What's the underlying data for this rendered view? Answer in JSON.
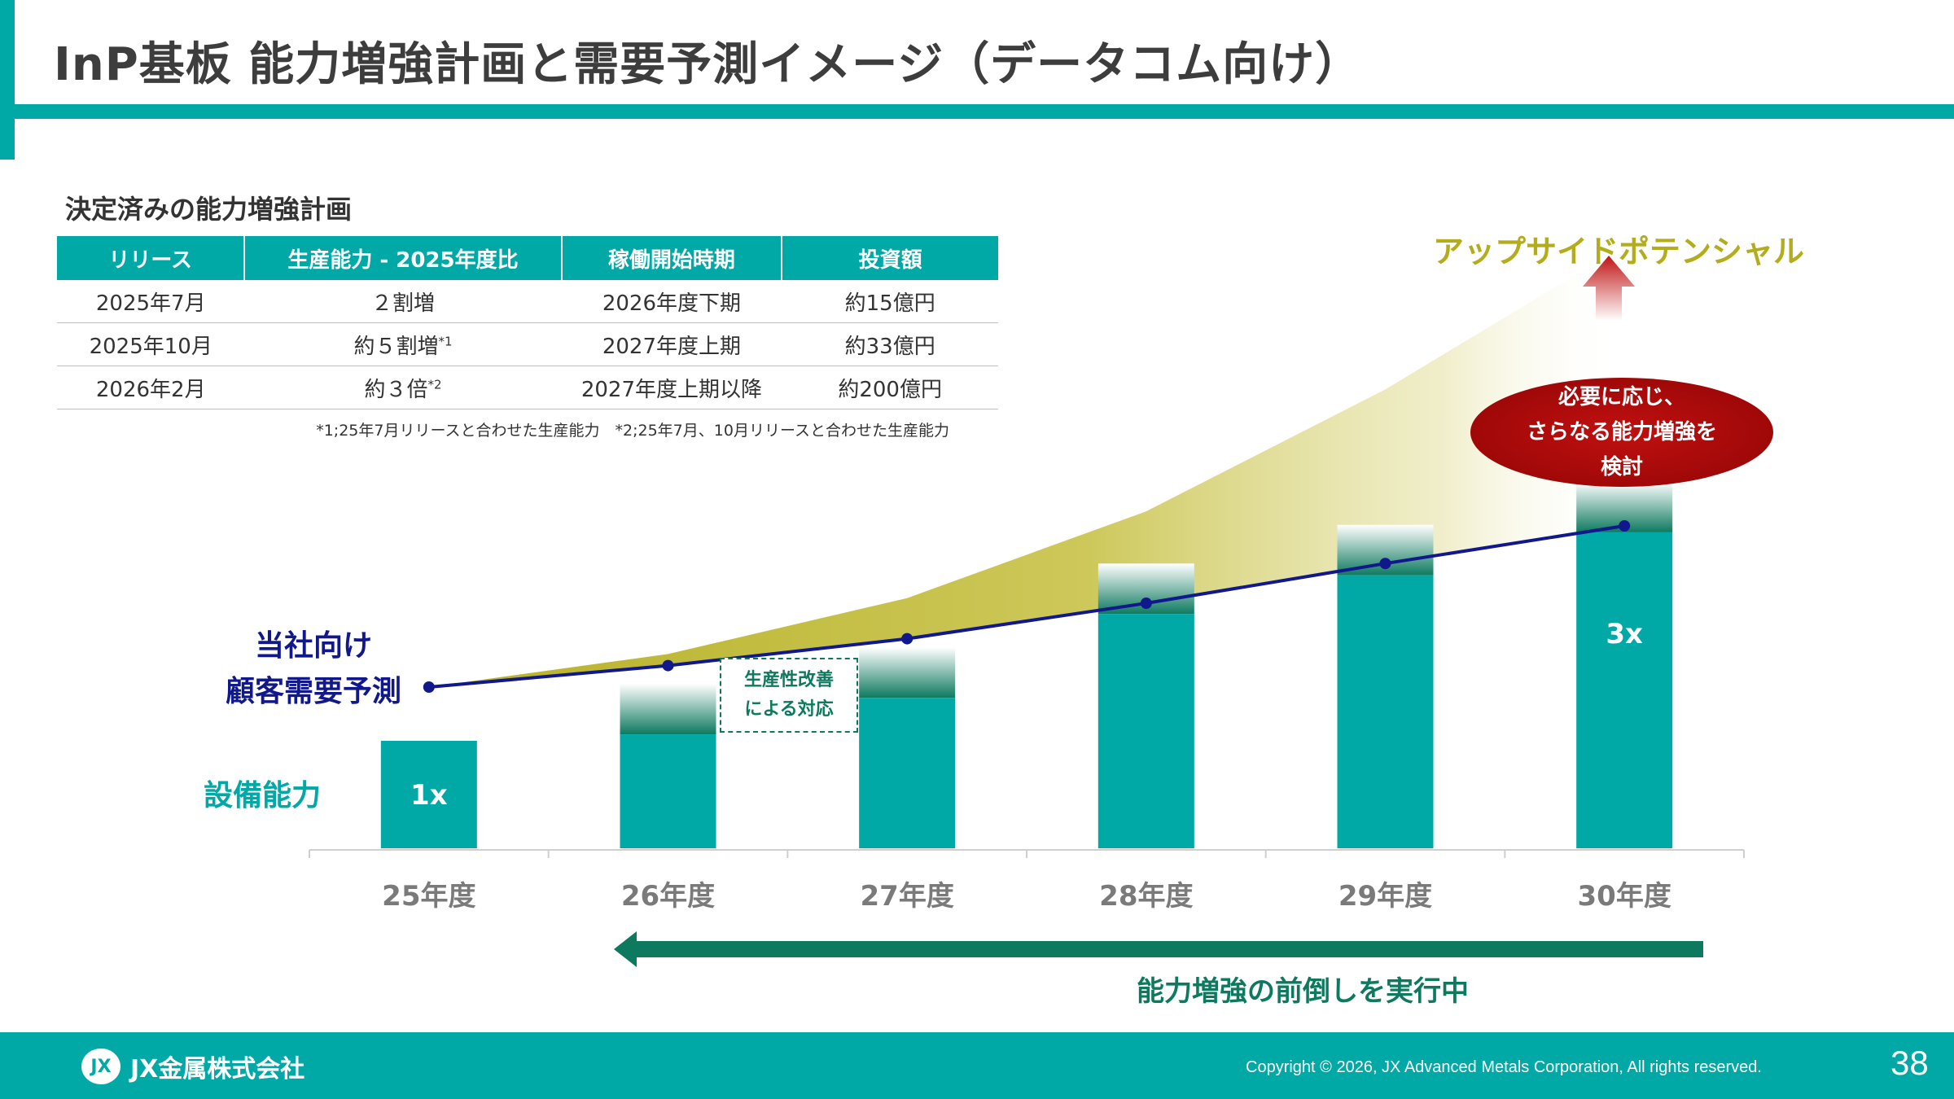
{
  "title": "InP基板 能力増強計画と需要予測イメージ（データコム向け）",
  "plan": {
    "section_title": "決定済みの能力増強計画",
    "headers": [
      "リリース",
      "生産能力 - 2025年度比",
      "稼働開始時期",
      "投資額"
    ],
    "rows": [
      {
        "release": "2025年7月",
        "capacity": "２割増",
        "cap_note": "",
        "start": "2026年度下期",
        "investment": "約15億円"
      },
      {
        "release": "2025年10月",
        "capacity": "約５割増",
        "cap_note": "*1",
        "start": "2027年度上期",
        "investment": "約33億円"
      },
      {
        "release": "2026年2月",
        "capacity": "約３倍",
        "cap_note": "*2",
        "start": "2027年度上期以降",
        "investment": "約200億円"
      }
    ],
    "note": "*1;25年7月リリースと合わせた生産能力　*2;25年7月、10月リリースと合わせた生産能力"
  },
  "upside": {
    "label": "アップサイドポテンシャル",
    "bubble_lines": [
      "必要に応じ、",
      "さらなる能力増強を",
      "検討"
    ]
  },
  "productivity_box": [
    "生産性改善",
    "による対応"
  ],
  "labels": {
    "demand_lines": [
      "当社向け",
      "顧客需要予測"
    ],
    "capacity": "設備能力"
  },
  "arrow_caption": "能力増強の前倒しを実行中",
  "chart_data": {
    "type": "bar",
    "categories": [
      "25年度",
      "26年度",
      "27年度",
      "28年度",
      "29年度",
      "30年度"
    ],
    "series": [
      {
        "name": "設備能力",
        "type": "bar",
        "values": [
          1.0,
          1.06,
          1.4,
          2.18,
          2.54,
          2.94
        ],
        "bar_labels": [
          "1x",
          "",
          "",
          "",
          "",
          "3x"
        ]
      },
      {
        "name": "当社向け顧客需要予測",
        "type": "line",
        "values": [
          1.5,
          1.7,
          1.95,
          2.28,
          2.65,
          3.0
        ]
      }
    ],
    "upside_potential": "shaded area above demand forecast widening toward 30年度",
    "colors": {
      "bar": "#00a9a5",
      "line": "#10188c",
      "upside": "#b3ad1b",
      "bubble": "#a00808"
    }
  },
  "footer": {
    "company": "JX金属株式会社",
    "logo_mark": "JX",
    "copyright": "Copyright © 2026, JX Advanced Metals Corporation, All rights reserved.",
    "page": "38"
  }
}
